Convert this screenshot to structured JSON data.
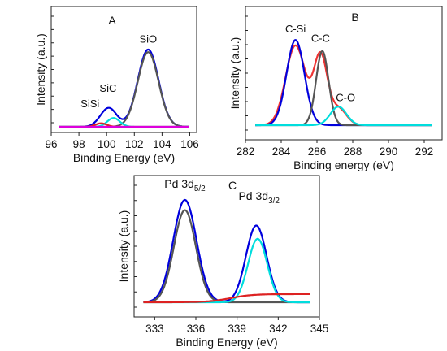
{
  "chart_data": [
    {
      "type": "line",
      "panel_label": "A",
      "xlabel": "Binding Energy (eV)",
      "ylabel": "Intensity (a.u.)",
      "xlim": [
        96,
        106.5
      ],
      "ylim": [
        0,
        100
      ],
      "xticks": [
        96,
        98,
        100,
        102,
        104,
        106
      ],
      "tick_labels": [
        "96",
        "98",
        "100",
        "102",
        "104",
        "106"
      ],
      "annotations": [
        {
          "text": "SiO",
          "x": 103.0,
          "y": 96
        },
        {
          "text": "SiC",
          "x": 100.1,
          "y": 40
        },
        {
          "text": "SiSi",
          "x": 98.8,
          "y": 22
        }
      ],
      "series": [
        {
          "color": "#0000dd",
          "baseline": 0,
          "peaks": [
            {
              "c": 99.6,
              "a": 3,
              "w": 0.5
            },
            {
              "c": 100.2,
              "a": 20,
              "w": 0.55
            },
            {
              "c": 103.0,
              "a": 88,
              "w": 0.75
            }
          ]
        },
        {
          "color": "#555555",
          "baseline": 0,
          "peaks": [
            {
              "c": 103.0,
              "a": 85,
              "w": 0.75
            }
          ]
        },
        {
          "color": "#00dddd",
          "baseline": 0,
          "peaks": [
            {
              "c": 100.5,
              "a": 10,
              "w": 0.45
            }
          ]
        },
        {
          "color": "#dd2222",
          "baseline": 0,
          "peaks": [
            {
              "c": 99.6,
              "a": 4,
              "w": 0.4
            }
          ]
        },
        {
          "color": "#dd00dd",
          "baseline": 0,
          "peaks": []
        }
      ]
    },
    {
      "type": "line",
      "panel_label": "B",
      "xlabel": "Binding energy (eV)",
      "ylabel": "Intensity (a.u.)",
      "xlim": [
        282,
        293
      ],
      "ylim": [
        0,
        100
      ],
      "xticks": [
        282,
        284,
        286,
        288,
        290,
        292
      ],
      "tick_labels": [
        "282",
        "284",
        "286",
        "288",
        "290",
        "292"
      ],
      "annotations": [
        {
          "text": "C-Si",
          "x": 284.8,
          "y": 100
        },
        {
          "text": "C-C",
          "x": 286.2,
          "y": 90
        },
        {
          "text": "C-O",
          "x": 287.6,
          "y": 26
        }
      ],
      "series": [
        {
          "color": "#ee3333",
          "baseline": 0,
          "peaks": [
            {
              "c": 284.8,
              "a": 86,
              "w": 0.55
            },
            {
              "c": 286.2,
              "a": 74,
              "w": 0.38
            },
            {
              "c": 287.2,
              "a": 18,
              "w": 0.45
            }
          ]
        },
        {
          "color": "#0000dd",
          "baseline": 0,
          "peaks": [
            {
              "c": 284.8,
              "a": 92,
              "w": 0.5
            }
          ]
        },
        {
          "color": "#555555",
          "baseline": 0,
          "peaks": [
            {
              "c": 286.3,
              "a": 80,
              "w": 0.35
            }
          ]
        },
        {
          "color": "#00dddd",
          "baseline": 0,
          "peaks": [
            {
              "c": 287.2,
              "a": 20,
              "w": 0.45
            }
          ]
        }
      ]
    },
    {
      "type": "line",
      "panel_label": "C",
      "xlabel": "Binding Energy (eV)",
      "ylabel": "Intensity (a.u.)",
      "xlim": [
        331.5,
        345
      ],
      "ylim": [
        0,
        100
      ],
      "xticks": [
        333,
        336,
        339,
        342,
        345
      ],
      "tick_labels": [
        "333",
        "336",
        "339",
        "342",
        "345"
      ],
      "annotations": [
        {
          "text": "Pd 3d",
          "sub": "5/2",
          "x": 335.2,
          "y": 112
        },
        {
          "text": "Pd 3d",
          "sub": "3/2",
          "x": 340.6,
          "y": 100
        }
      ],
      "series": [
        {
          "color": "#0000dd",
          "baseline": 0,
          "peaks": [
            {
              "c": 335.2,
              "a": 100,
              "w": 0.85
            },
            {
              "c": 340.4,
              "a": 75,
              "w": 0.75
            }
          ]
        },
        {
          "color": "#555555",
          "baseline": 0,
          "peaks": [
            {
              "c": 335.2,
              "a": 90,
              "w": 0.8
            }
          ]
        },
        {
          "color": "#00dddd",
          "baseline": 0,
          "peaks": [
            {
              "c": 340.5,
              "a": 62,
              "w": 0.7
            }
          ]
        },
        {
          "color": "#dd2222",
          "baseline": 0,
          "sigmoid": {
            "c": 338.5,
            "a": 8,
            "k": 0.8
          },
          "peaks": []
        }
      ]
    }
  ]
}
